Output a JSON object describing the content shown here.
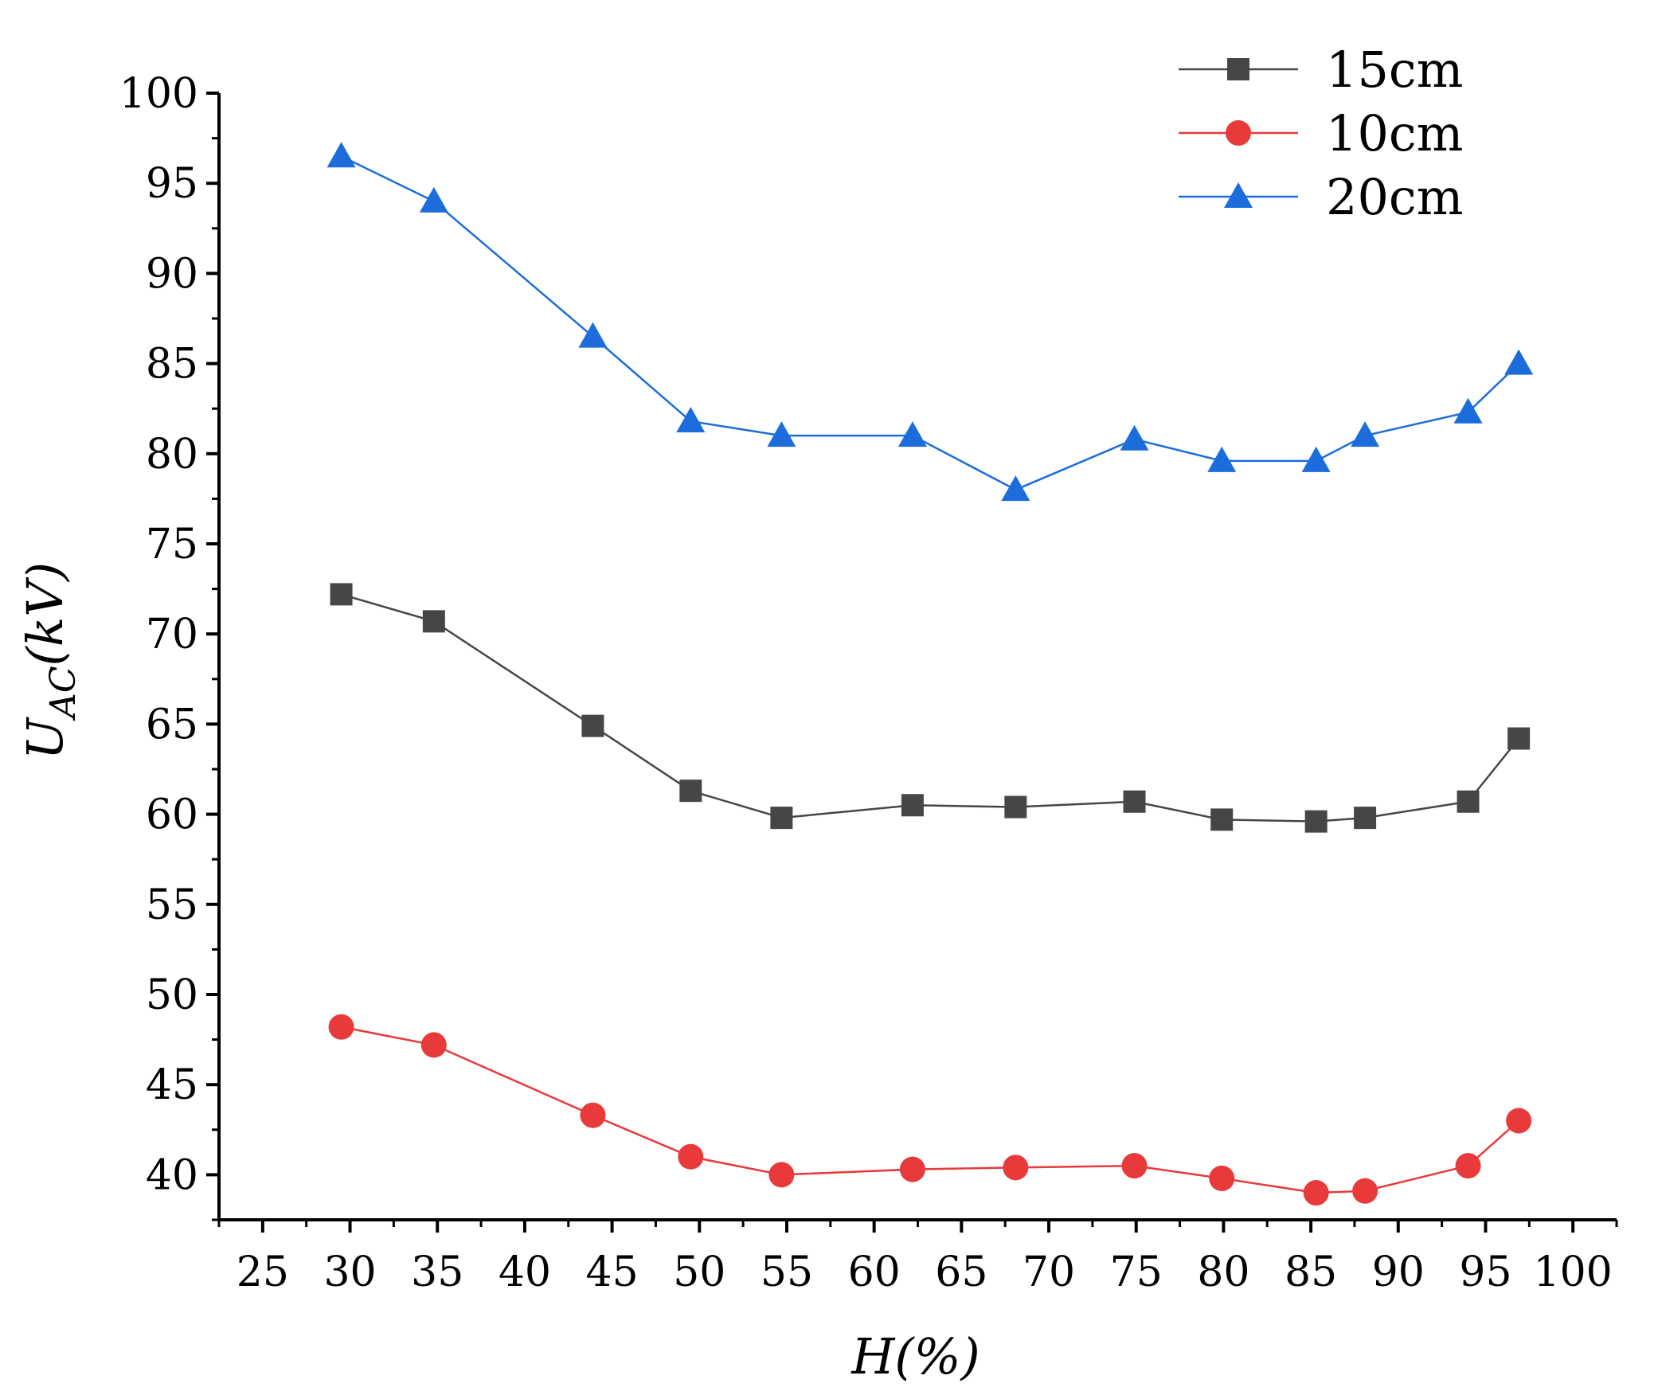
{
  "chart_data": {
    "type": "line",
    "title": "",
    "xlabel": "H(%)",
    "ylabel": "U_AC(kV)",
    "ylabel_main": "U",
    "ylabel_sub": "AC",
    "ylabel_unit": "(kV)",
    "xlim": [
      22.5,
      102.5
    ],
    "ylim": [
      37.5,
      100
    ],
    "xticks": [
      "25",
      "30",
      "35",
      "40",
      "45",
      "50",
      "55",
      "60",
      "65",
      "70",
      "75",
      "80",
      "85",
      "90",
      "95",
      "100"
    ],
    "yticks": [
      "40",
      "45",
      "50",
      "55",
      "60",
      "65",
      "70",
      "75",
      "80",
      "85",
      "90",
      "95",
      "100"
    ],
    "x": [
      29.5,
      34.8,
      43.9,
      49.5,
      54.7,
      62.2,
      68.1,
      74.9,
      79.9,
      85.3,
      88.1,
      94.0,
      96.9
    ],
    "series": [
      {
        "name": "15cm",
        "color": "#464646",
        "marker": "square",
        "values": [
          72.2,
          70.7,
          64.9,
          61.3,
          59.8,
          60.5,
          60.4,
          60.7,
          59.7,
          59.6,
          59.8,
          60.7,
          64.2
        ]
      },
      {
        "name": "10cm",
        "color": "#e8393b",
        "marker": "circle",
        "values": [
          48.2,
          47.2,
          43.3,
          41.0,
          40.0,
          40.3,
          40.4,
          40.5,
          39.8,
          39.0,
          39.1,
          40.5,
          43.0
        ]
      },
      {
        "name": "20cm",
        "color": "#1c6ddb",
        "marker": "triangle",
        "values": [
          96.5,
          94.0,
          86.5,
          81.8,
          81.0,
          81.0,
          78.0,
          80.8,
          79.6,
          79.6,
          81.0,
          82.3,
          85.0
        ]
      }
    ],
    "legend_placement": "top-right",
    "grid": false
  }
}
